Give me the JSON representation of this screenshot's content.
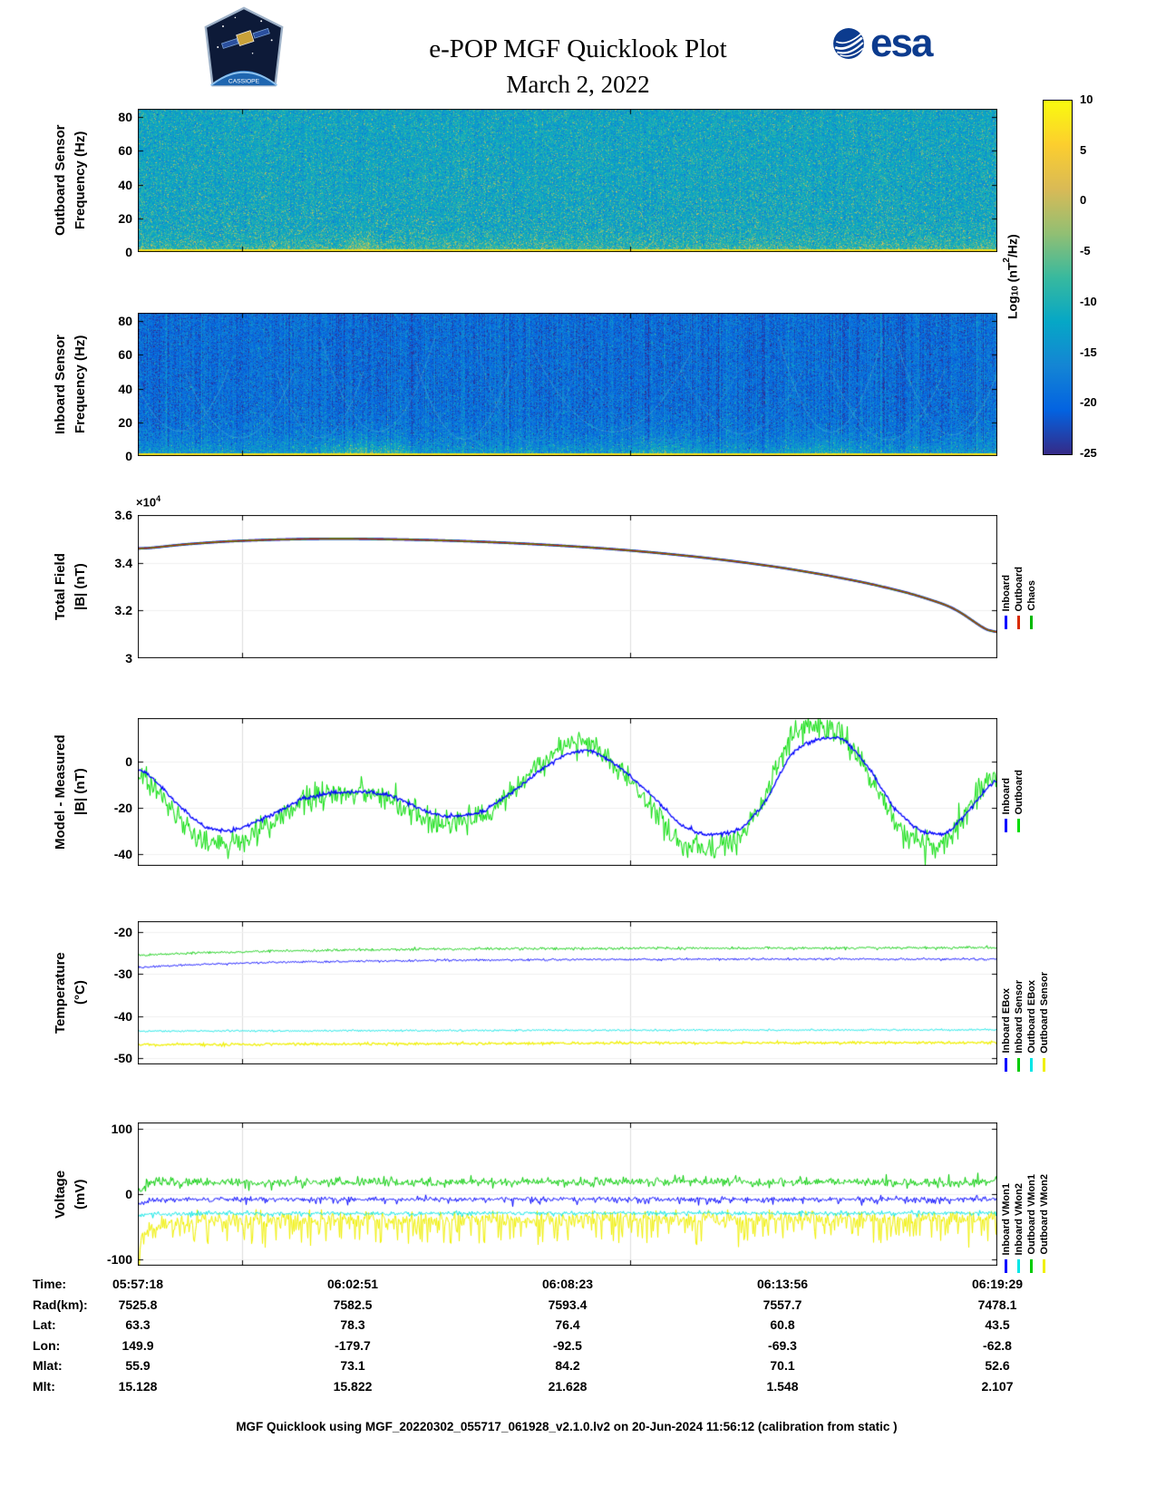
{
  "header": {
    "title": "e-POP MGF Quicklook Plot",
    "date": "March 2, 2022",
    "esa_logo_text": "esa",
    "patch_text": "CASSIOPE"
  },
  "colorbar": {
    "label_prefix": "Log",
    "label_sub": "10",
    "label_mid": " (nT",
    "label_sup": "2",
    "label_suffix": "/Hz)",
    "min": -25,
    "max": 10,
    "ticks": [
      "10",
      "5",
      "0",
      "-5",
      "-10",
      "-15",
      "-20",
      "-25"
    ],
    "tick_values": [
      10,
      5,
      0,
      -5,
      -10,
      -15,
      -20,
      -25
    ],
    "stops": [
      "#352a87",
      "#0363e1",
      "#1485d4",
      "#06a7c6",
      "#38b99e",
      "#92bf73",
      "#d9ba56",
      "#fcce2e",
      "#f9fb0e"
    ]
  },
  "footer": "MGF Quicklook using MGF_20220302_055717_061928_v2.1.0.lv2 on 20-Jun-2024 11:56:12 (calibration from static )",
  "chart_data": [
    {
      "id": "outboard-spectrogram",
      "type": "heatmap",
      "ylabel_lines": [
        "Outboard Sensor",
        "Frequency (Hz)"
      ],
      "ylim": [
        0,
        85
      ],
      "yticks": [
        0,
        20,
        40,
        60,
        80
      ],
      "ytick_labels": [
        "0",
        "20",
        "40",
        "60",
        "80"
      ],
      "x_start": "05:57:18",
      "x_end": "06:19:29",
      "value_scale": "Log10 (nT^2/Hz)",
      "clim": [
        -25,
        10
      ],
      "render": {
        "base": -12,
        "sigma": 2.6,
        "col_sigma": 0.6,
        "speckle_prob": 0.22,
        "speckle_gain": 7,
        "low_boost": 6,
        "low_scale": 5,
        "bottom_level": 6.5,
        "bottom_rows": 3,
        "arcs": false,
        "plumes": [
          {
            "x0": 0.24,
            "x1": 0.28,
            "gain": 9
          }
        ]
      },
      "description": "diffuse teal background with yellow-green speckle densest at low frequency; bright yellow line at 0 Hz"
    },
    {
      "id": "inboard-spectrogram",
      "type": "heatmap",
      "ylabel_lines": [
        "Inboard Sensor",
        "Frequency (Hz)"
      ],
      "ylim": [
        0,
        85
      ],
      "yticks": [
        0,
        20,
        40,
        60,
        80
      ],
      "ytick_labels": [
        "0",
        "20",
        "40",
        "60",
        "80"
      ],
      "x_start": "05:57:18",
      "x_end": "06:19:29",
      "value_scale": "Log10 (nT^2/Hz)",
      "clim": [
        -25,
        10
      ],
      "render": {
        "base": -19.5,
        "sigma": 2.2,
        "col_sigma": 1.3,
        "speckle_prob": 0.1,
        "speckle_gain": 6,
        "low_boost": 9,
        "low_scale": 8,
        "bottom_level": 6.5,
        "bottom_rows": 3,
        "arcs": true,
        "plumes": [
          {
            "x0": 0.2,
            "x1": 0.33,
            "gain": 14
          },
          {
            "x0": 0.56,
            "x1": 0.66,
            "gain": 8
          },
          {
            "x0": 0.75,
            "x1": 0.85,
            "gain": 7
          }
        ]
      },
      "description": "dark blue background with vertical banding, faint teal interference arcs, yellow plumes at low frequency, bright yellow line at 0 Hz"
    },
    {
      "id": "total-field",
      "type": "line",
      "ylabel_lines": [
        "Total Field",
        "|B| (nT)"
      ],
      "ylim": [
        30000,
        36000
      ],
      "yticks": [
        30000,
        32000,
        34000,
        36000
      ],
      "ytick_labels": [
        "3",
        "3.2",
        "3.4",
        "3.6"
      ],
      "scale_prefix": "×10",
      "scale_exp": "4",
      "x": [
        0,
        0.05,
        0.1,
        0.15,
        0.2,
        0.25,
        0.3,
        0.35,
        0.4,
        0.45,
        0.5,
        0.55,
        0.6,
        0.65,
        0.7,
        0.75,
        0.8,
        0.85,
        0.9,
        0.95,
        1
      ],
      "y": [
        34560,
        34760,
        34890,
        34960,
        35000,
        35005,
        34980,
        34940,
        34880,
        34800,
        34700,
        34580,
        34430,
        34250,
        34040,
        33790,
        33490,
        33140,
        32710,
        32130,
        30850
      ],
      "series": [
        {
          "name": "Inboard",
          "color": "#0000ff",
          "width": 2.6
        },
        {
          "name": "Chaos",
          "color": "#00b800",
          "width": 1.8
        },
        {
          "name": "Outboard",
          "color": "#d92b00",
          "width": 1.1
        }
      ],
      "legend": [
        {
          "label": "Inboard",
          "color": "#0000ff"
        },
        {
          "label": "Outboard",
          "color": "#d92b00"
        },
        {
          "label": "Chaos",
          "color": "#00b800"
        }
      ]
    },
    {
      "id": "model-minus-measured",
      "type": "line",
      "ylabel_lines": [
        "Model - Measured",
        "|B| (nT)"
      ],
      "ylim": [
        -45,
        19
      ],
      "yticks": [
        -40,
        -20,
        0
      ],
      "ytick_labels": [
        "-40",
        "-20",
        "0"
      ],
      "series": [
        {
          "name": "Outboard",
          "color": "#00dd00",
          "width": 1,
          "noise": 2.8,
          "x": [
            0,
            0.02,
            0.05,
            0.08,
            0.11,
            0.15,
            0.19,
            0.23,
            0.27,
            0.3,
            0.33,
            0.36,
            0.4,
            0.44,
            0.47,
            0.5,
            0.53,
            0.56,
            0.6,
            0.63,
            0.66,
            0.7,
            0.73,
            0.76,
            0.79,
            0.82,
            0.85,
            0.88,
            0.91,
            0.94,
            0.97,
            1.0
          ],
          "y": [
            -5,
            -12,
            -26,
            -35,
            -36,
            -27,
            -17,
            -14,
            -14,
            -17,
            -24,
            -27,
            -24,
            -12,
            0,
            8,
            8,
            -4,
            -20,
            -35,
            -38,
            -34,
            -16,
            12,
            16,
            13,
            -5,
            -26,
            -36,
            -37,
            -18,
            -3
          ]
        },
        {
          "name": "Inboard",
          "color": "#0000ff",
          "width": 1.3,
          "noise": 0.4,
          "x": [
            0,
            0.02,
            0.05,
            0.08,
            0.11,
            0.15,
            0.19,
            0.23,
            0.27,
            0.3,
            0.33,
            0.36,
            0.4,
            0.44,
            0.47,
            0.5,
            0.53,
            0.56,
            0.6,
            0.63,
            0.66,
            0.7,
            0.73,
            0.76,
            0.79,
            0.82,
            0.85,
            0.88,
            0.91,
            0.94,
            0.97,
            1.0
          ],
          "y": [
            -2,
            -8,
            -20,
            -29,
            -30,
            -24,
            -16,
            -13,
            -13,
            -15,
            -21,
            -24,
            -22,
            -12,
            -3,
            4,
            5,
            -2,
            -15,
            -27,
            -32,
            -30,
            -18,
            4,
            10,
            11,
            -2,
            -20,
            -30,
            -32,
            -20,
            -6
          ]
        }
      ],
      "legend": [
        {
          "label": "Inboard",
          "color": "#0000ff"
        },
        {
          "label": "Outboard",
          "color": "#00dd00"
        }
      ]
    },
    {
      "id": "temperature",
      "type": "line",
      "ylabel_lines": [
        "Temperature",
        "(°C)"
      ],
      "ylim": [
        -51.5,
        -17.5
      ],
      "yticks": [
        -50,
        -40,
        -30,
        -20
      ],
      "ytick_labels": [
        "-50",
        "-40",
        "-30",
        "-20"
      ],
      "series": [
        {
          "name": "Outboard Sensor",
          "color": "#f0f000",
          "width": 1.2,
          "noise": 0.15,
          "x": [
            0,
            0.3,
            0.6,
            1
          ],
          "y": [
            -46.8,
            -46.6,
            -46.4,
            -46.3
          ]
        },
        {
          "name": "Outboard EBox",
          "color": "#00e6e6",
          "width": 1,
          "noise": 0.1,
          "x": [
            0,
            0.5,
            1
          ],
          "y": [
            -43.6,
            -43.4,
            -43.3
          ]
        },
        {
          "name": "Inboard EBox",
          "color": "#0000ff",
          "width": 1,
          "noise": 0.12,
          "x": [
            0,
            0.08,
            0.16,
            0.25,
            0.35,
            0.5,
            0.7,
            1
          ],
          "y": [
            -28.4,
            -27.7,
            -27.3,
            -27.0,
            -26.8,
            -26.6,
            -26.5,
            -26.5
          ]
        },
        {
          "name": "Inboard Sensor",
          "color": "#00cc00",
          "width": 1,
          "noise": 0.15,
          "x": [
            0,
            0.08,
            0.16,
            0.25,
            0.35,
            0.5,
            0.7,
            1
          ],
          "y": [
            -25.6,
            -24.9,
            -24.6,
            -24.3,
            -24.1,
            -24.0,
            -23.9,
            -23.8
          ]
        }
      ],
      "legend": [
        {
          "label": "Inboard EBox",
          "color": "#0000ff"
        },
        {
          "label": "Inboard Sensor",
          "color": "#00cc00"
        },
        {
          "label": "Outboard EBox",
          "color": "#00e6e6"
        },
        {
          "label": "Outboard Sensor",
          "color": "#f0f000"
        }
      ]
    },
    {
      "id": "voltage",
      "type": "line",
      "ylabel_lines": [
        "Voltage",
        "(mV)"
      ],
      "ylim": [
        -110,
        110
      ],
      "yticks": [
        -100,
        0,
        100
      ],
      "ytick_labels": [
        "-100",
        "0",
        "100"
      ],
      "series": [
        {
          "name": "Outboard VMon2",
          "color": "#f0f000",
          "width": 1,
          "noise": 5,
          "spike_prob": 0.28,
          "spike_down": 38,
          "spike_up": 6,
          "x": [
            0,
            0.006,
            0.015,
            0.03,
            0.08,
            0.5,
            1
          ],
          "y": [
            -86,
            -62,
            -48,
            -42,
            -39,
            -38,
            -37
          ]
        },
        {
          "name": "Inboard VMon2",
          "color": "#00e6e6",
          "width": 1,
          "noise": 1.6,
          "spike_prob": 0.05,
          "spike_down": 5,
          "spike_up": 4,
          "x": [
            0,
            0.01,
            0.05,
            1
          ],
          "y": [
            -34,
            -31,
            -30,
            -29
          ]
        },
        {
          "name": "Inboard VMon1",
          "color": "#0000ff",
          "width": 1,
          "noise": 1.8,
          "spike_prob": 0.12,
          "spike_down": 8,
          "spike_up": 3,
          "x": [
            0,
            0.01,
            0.06,
            1
          ],
          "y": [
            -16,
            -10,
            -8,
            -8
          ]
        },
        {
          "name": "Outboard VMon1",
          "color": "#00cc00",
          "width": 1,
          "noise": 3.2,
          "spike_prob": 0.1,
          "spike_down": 7,
          "spike_up": 9,
          "x": [
            0,
            0.008,
            0.03,
            0.5,
            1
          ],
          "y": [
            4,
            14,
            18,
            19,
            18
          ]
        }
      ],
      "legend": [
        {
          "label": "Inboard VMon1",
          "color": "#0000ff"
        },
        {
          "label": "Inboard VMon2",
          "color": "#00e6e6"
        },
        {
          "label": "Outboard VMon1",
          "color": "#00cc00"
        },
        {
          "label": "Outboard VMon2",
          "color": "#f0f000"
        }
      ]
    },
    {
      "id": "ephemeris",
      "type": "table",
      "rows": [
        {
          "label": "Time:",
          "values": [
            "05:57:18",
            "06:02:51",
            "06:08:23",
            "06:13:56",
            "06:19:29"
          ]
        },
        {
          "label": "Rad(km):",
          "values": [
            "7525.8",
            "7582.5",
            "7593.4",
            "7557.7",
            "7478.1"
          ]
        },
        {
          "label": "Lat:",
          "values": [
            "63.3",
            "78.3",
            "76.4",
            "60.8",
            "43.5"
          ]
        },
        {
          "label": "Lon:",
          "values": [
            "149.9",
            "-179.7",
            "-92.5",
            "-69.3",
            "-62.8"
          ]
        },
        {
          "label": "Mlat:",
          "values": [
            "55.9",
            "73.1",
            "84.2",
            "70.1",
            "52.6"
          ]
        },
        {
          "label": "Mlt:",
          "values": [
            "15.128",
            "15.822",
            "21.628",
            "1.548",
            "2.107"
          ]
        }
      ]
    }
  ]
}
